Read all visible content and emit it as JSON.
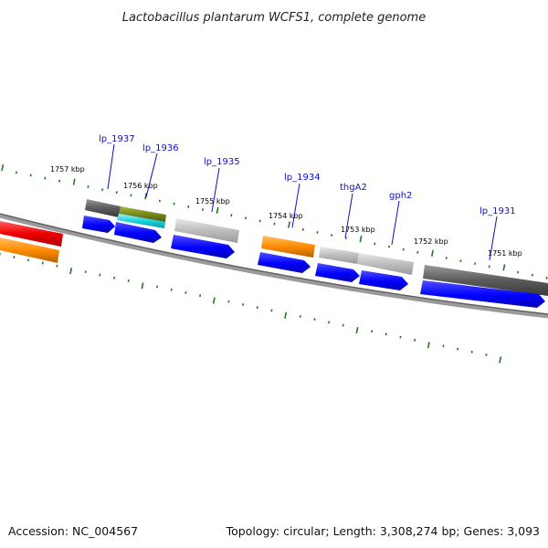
{
  "title": "Lactobacillus plantarum WCFS1, complete genome",
  "footer": {
    "accession": "Accession: NC_004567",
    "summary": "Topology: circular; Length: 3,308,274 bp; Genes: 3,093"
  },
  "scale_labels": [
    "1757 kbp",
    "1756 kbp",
    "1755 kbp",
    "1754 kbp",
    "1753 kbp",
    "1752 kbp",
    "1751 kbp"
  ],
  "gene_labels": [
    "lp_1937",
    "lp_1936",
    "lp_1935",
    "lp_1934",
    "thgA2",
    "gph2",
    "lp_1931"
  ],
  "colors": {
    "backbone": "#8a8a8a",
    "tick": "#1e7a1e",
    "cds": "#0000ff",
    "gene_dark": "#5f5f5f",
    "gene_light": "#bdbdbd",
    "gene_olive": "#7a8a1e",
    "gene_cyan": "#19d3e0",
    "gene_red": "#ee0000",
    "gene_orange": "#ff8c00",
    "label_line": "#1010c8"
  }
}
